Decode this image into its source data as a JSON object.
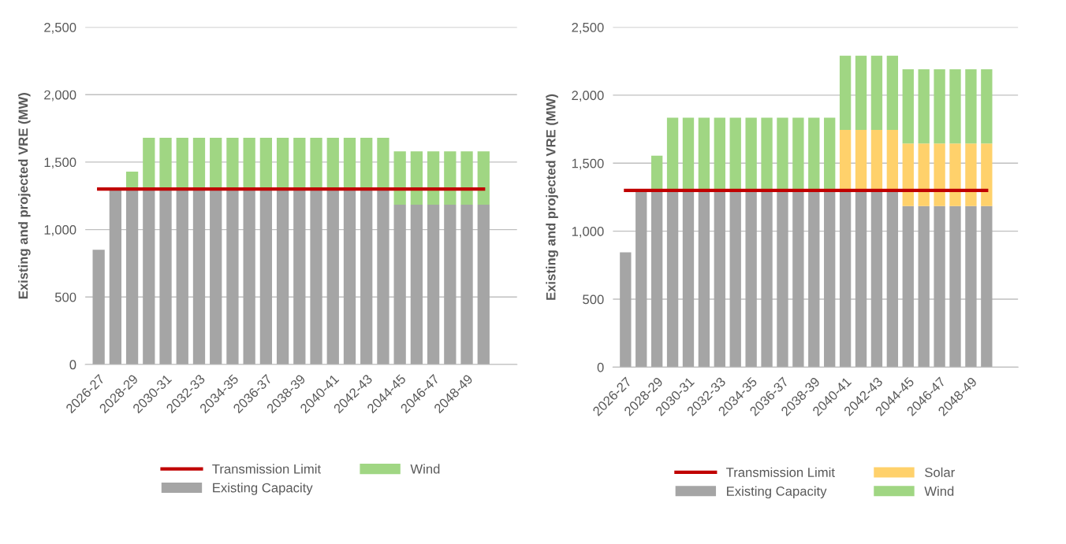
{
  "chart_data": [
    {
      "type": "bar",
      "stacked": true,
      "ylabel": "Existing and projected VRE (MW)",
      "categories": [
        "2026-27",
        null,
        "2028-29",
        null,
        "2030-31",
        null,
        "2032-33",
        null,
        "2034-35",
        null,
        "2036-37",
        null,
        "2038-39",
        null,
        "2040-41",
        null,
        "2042-43",
        null,
        "2044-45",
        null,
        "2046-47",
        null,
        "2048-49",
        null
      ],
      "series": [
        {
          "name": "Transmission Limit",
          "type": "line",
          "color": "#c00000",
          "values": [
            1300,
            1300,
            1300,
            1300,
            1300,
            1300,
            1300,
            1300,
            1300,
            1300,
            1300,
            1300,
            1300,
            1300,
            1300,
            1300,
            1300,
            1300,
            1300,
            1300,
            1300,
            1300,
            1300,
            1300
          ]
        },
        {
          "name": "Existing Capacity",
          "color": "#a5a5a5",
          "values": [
            850,
            1300,
            1300,
            1300,
            1300,
            1300,
            1300,
            1300,
            1300,
            1300,
            1300,
            1300,
            1300,
            1300,
            1300,
            1300,
            1300,
            1300,
            1185,
            1185,
            1185,
            1185,
            1185,
            1185
          ]
        },
        {
          "name": "Wind",
          "color": "#a0d683",
          "values": [
            0,
            0,
            130,
            380,
            380,
            380,
            380,
            380,
            380,
            380,
            380,
            380,
            380,
            380,
            380,
            380,
            380,
            380,
            395,
            395,
            395,
            395,
            395,
            395
          ]
        }
      ],
      "ylim": [
        0,
        2500
      ],
      "yticks": [
        {
          "value": 0,
          "label": "0"
        },
        {
          "value": 500,
          "label": "500"
        },
        {
          "value": 1000,
          "label": "1,000"
        },
        {
          "value": 1500,
          "label": "1,500"
        },
        {
          "value": 2000,
          "label": "2,000"
        },
        {
          "value": 2500,
          "label": "2,500"
        }
      ],
      "grid": "y",
      "legend": "bottom"
    },
    {
      "type": "bar",
      "stacked": true,
      "ylabel": "Existing and projected VRE (MW)",
      "categories": [
        "2026-27",
        null,
        "2028-29",
        null,
        "2030-31",
        null,
        "2032-33",
        null,
        "2034-35",
        null,
        "2036-37",
        null,
        "2038-39",
        null,
        "2040-41",
        null,
        "2042-43",
        null,
        "2044-45",
        null,
        "2046-47",
        null,
        "2048-49",
        null
      ],
      "series": [
        {
          "name": "Transmission Limit",
          "type": "line",
          "color": "#c00000",
          "values": [
            1300,
            1300,
            1300,
            1300,
            1300,
            1300,
            1300,
            1300,
            1300,
            1300,
            1300,
            1300,
            1300,
            1300,
            1300,
            1300,
            1300,
            1300,
            1300,
            1300,
            1300,
            1300,
            1300,
            1300
          ]
        },
        {
          "name": "Existing Capacity",
          "color": "#a5a5a5",
          "values": [
            845,
            1300,
            1300,
            1300,
            1300,
            1300,
            1300,
            1300,
            1300,
            1300,
            1300,
            1300,
            1300,
            1300,
            1300,
            1300,
            1300,
            1300,
            1185,
            1185,
            1185,
            1185,
            1185,
            1185
          ]
        },
        {
          "name": "Solar",
          "color": "#ffd16b",
          "values": [
            0,
            0,
            0,
            0,
            0,
            0,
            0,
            0,
            0,
            0,
            0,
            0,
            0,
            0,
            445,
            445,
            445,
            445,
            460,
            460,
            460,
            460,
            460,
            460
          ]
        },
        {
          "name": "Wind",
          "color": "#a0d683",
          "values": [
            0,
            0,
            255,
            535,
            535,
            535,
            535,
            535,
            535,
            535,
            535,
            535,
            535,
            535,
            545,
            545,
            545,
            545,
            545,
            545,
            545,
            545,
            545,
            545
          ]
        }
      ],
      "ylim": [
        0,
        2500
      ],
      "yticks": [
        {
          "value": 0,
          "label": "0"
        },
        {
          "value": 500,
          "label": "500"
        },
        {
          "value": 1000,
          "label": "1,000"
        },
        {
          "value": 1500,
          "label": "1,500"
        },
        {
          "value": 2000,
          "label": "2,000"
        },
        {
          "value": 2500,
          "label": "2,500"
        }
      ],
      "grid": "y",
      "legend": "bottom"
    }
  ]
}
